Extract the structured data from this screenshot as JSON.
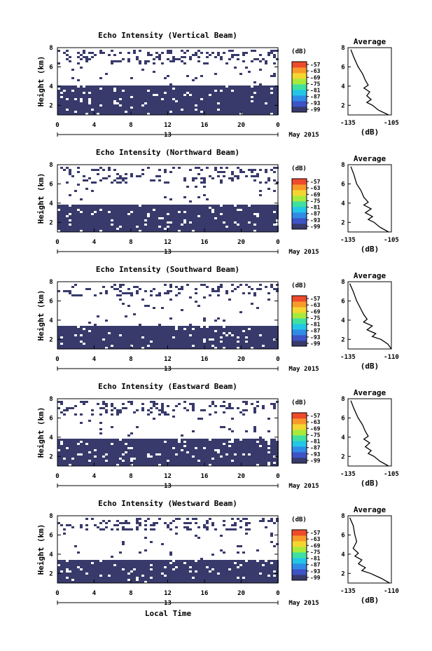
{
  "figure": {
    "date_label": "May 2015",
    "xlabel": "Local Time",
    "colors": {
      "echo": "#383a6b",
      "background": "#ffffff",
      "frame": "#000000"
    }
  },
  "chart_data": [
    {
      "type": "heatmap",
      "title": "Echo Intensity (Vertical Beam)",
      "ylabel": "Height (km)",
      "xlabel": "",
      "x_ticks": [
        "0",
        "4",
        "8",
        "12",
        "16",
        "20",
        "0"
      ],
      "y_ticks": [
        "2",
        "4",
        "6",
        "8"
      ],
      "day_label": "13",
      "ylim": [
        1,
        8
      ],
      "xlim": [
        0,
        24
      ],
      "dominant_value_dB": -99,
      "layers": [
        {
          "name": "lower",
          "bottom_km": 1.0,
          "top_km": 4.0
        },
        {
          "name": "upper-sparse",
          "bottom_km": 6.3,
          "top_km": 7.8
        }
      ],
      "colorbar": {
        "unit": "(dB)",
        "ticks": [
          "-57",
          "-63",
          "-69",
          "-75",
          "-81",
          "-87",
          "-93",
          "-99"
        ]
      },
      "profile": {
        "title": "Average",
        "xlabel": "(dB)",
        "x_ticks": [
          "-135",
          "-105"
        ],
        "y_ticks": [
          "2",
          "4",
          "6",
          "8"
        ],
        "x": [
          -133,
          -131,
          -128,
          -125,
          -123,
          -121,
          -124,
          -120,
          -122,
          -119,
          -122,
          -118,
          -114,
          -107
        ],
        "y": [
          7.8,
          7.0,
          6.0,
          5.3,
          4.6,
          4.1,
          3.8,
          3.4,
          3.0,
          2.6,
          2.3,
          2.0,
          1.5,
          1.0
        ]
      }
    },
    {
      "type": "heatmap",
      "title": "Echo Intensity (Northward Beam)",
      "ylabel": "Height (km)",
      "xlabel": "",
      "x_ticks": [
        "0",
        "4",
        "8",
        "12",
        "16",
        "20",
        "0"
      ],
      "y_ticks": [
        "2",
        "4",
        "6",
        "8"
      ],
      "day_label": "13",
      "ylim": [
        1,
        8
      ],
      "xlim": [
        0,
        24
      ],
      "dominant_value_dB": -99,
      "layers": [
        {
          "name": "lower",
          "bottom_km": 1.0,
          "top_km": 3.9
        },
        {
          "name": "upper-sparse",
          "bottom_km": 6.0,
          "top_km": 7.8
        }
      ],
      "colorbar": {
        "unit": "(dB)",
        "ticks": [
          "-57",
          "-63",
          "-69",
          "-75",
          "-81",
          "-87",
          "-93",
          "-99"
        ]
      },
      "profile": {
        "title": "Average",
        "xlabel": "(dB)",
        "x_ticks": [
          "-135",
          "-105"
        ],
        "y_ticks": [
          "2",
          "4",
          "6",
          "8"
        ],
        "x": [
          -133,
          -131,
          -129,
          -126,
          -124,
          -121,
          -124,
          -119,
          -123,
          -118,
          -121,
          -117,
          -113,
          -107
        ],
        "y": [
          7.8,
          7.0,
          6.0,
          5.3,
          4.6,
          4.1,
          3.8,
          3.4,
          3.0,
          2.6,
          2.3,
          2.0,
          1.5,
          1.0
        ]
      }
    },
    {
      "type": "heatmap",
      "title": "Echo Intensity (Southward Beam)",
      "ylabel": "Height (km)",
      "xlabel": "",
      "x_ticks": [
        "0",
        "4",
        "8",
        "12",
        "16",
        "20",
        "0"
      ],
      "y_ticks": [
        "2",
        "4",
        "6",
        "8"
      ],
      "day_label": "13",
      "ylim": [
        1,
        8
      ],
      "xlim": [
        0,
        24
      ],
      "dominant_value_dB": -99,
      "layers": [
        {
          "name": "lower",
          "bottom_km": 1.0,
          "top_km": 3.5
        },
        {
          "name": "upper-sparse",
          "bottom_km": 6.5,
          "top_km": 7.8
        }
      ],
      "colorbar": {
        "unit": "(dB)",
        "ticks": [
          "-57",
          "-63",
          "-69",
          "-75",
          "-81",
          "-87",
          "-93",
          "-99"
        ]
      },
      "profile": {
        "title": "Average",
        "xlabel": "(dB)",
        "x_ticks": [
          "-135",
          "-110"
        ],
        "y_ticks": [
          "2",
          "4",
          "6",
          "8"
        ],
        "x": [
          -134,
          -132,
          -130,
          -128,
          -126,
          -124,
          -126,
          -121,
          -124,
          -119,
          -121,
          -116,
          -112,
          -110
        ],
        "y": [
          7.8,
          7.0,
          6.0,
          5.3,
          4.6,
          4.1,
          3.8,
          3.4,
          3.0,
          2.6,
          2.3,
          2.0,
          1.5,
          1.0
        ]
      }
    },
    {
      "type": "heatmap",
      "title": "Echo Intensity (Eastward Beam)",
      "ylabel": "Height (km)",
      "xlabel": "",
      "x_ticks": [
        "0",
        "4",
        "8",
        "12",
        "16",
        "20",
        "0"
      ],
      "y_ticks": [
        "2",
        "4",
        "6",
        "8"
      ],
      "day_label": "13",
      "ylim": [
        1,
        8
      ],
      "xlim": [
        0,
        24
      ],
      "dominant_value_dB": -99,
      "layers": [
        {
          "name": "lower",
          "bottom_km": 1.0,
          "top_km": 3.9
        },
        {
          "name": "upper-sparse",
          "bottom_km": 6.2,
          "top_km": 7.8
        }
      ],
      "colorbar": {
        "unit": "(dB)",
        "ticks": [
          "-57",
          "-63",
          "-69",
          "-75",
          "-81",
          "-87",
          "-93",
          "-99"
        ]
      },
      "profile": {
        "title": "Average",
        "xlabel": "(dB)",
        "x_ticks": [
          "-135",
          "-105"
        ],
        "y_ticks": [
          "2",
          "4",
          "6",
          "8"
        ],
        "x": [
          -133,
          -131,
          -128,
          -125,
          -123,
          -121,
          -124,
          -120,
          -123,
          -119,
          -121,
          -117,
          -113,
          -107
        ],
        "y": [
          7.8,
          7.0,
          6.0,
          5.3,
          4.6,
          4.1,
          3.8,
          3.4,
          3.0,
          2.6,
          2.3,
          2.0,
          1.5,
          1.0
        ]
      }
    },
    {
      "type": "heatmap",
      "title": "Echo Intensity (Westward Beam)",
      "ylabel": "Height (km)",
      "xlabel": "Local Time",
      "x_ticks": [
        "0",
        "4",
        "8",
        "12",
        "16",
        "20",
        "0"
      ],
      "y_ticks": [
        "2",
        "4",
        "6",
        "8"
      ],
      "day_label": "13",
      "ylim": [
        1,
        8
      ],
      "xlim": [
        0,
        24
      ],
      "dominant_value_dB": -99,
      "layers": [
        {
          "name": "lower",
          "bottom_km": 1.0,
          "top_km": 3.3
        },
        {
          "name": "upper-sparse",
          "bottom_km": 6.5,
          "top_km": 7.8
        }
      ],
      "colorbar": {
        "unit": "(dB)",
        "ticks": [
          "-57",
          "-63",
          "-69",
          "-75",
          "-81",
          "-87",
          "-93",
          "-99"
        ]
      },
      "profile": {
        "title": "Average",
        "xlabel": "(dB)",
        "x_ticks": [
          "-135",
          "-110"
        ],
        "y_ticks": [
          "2",
          "4",
          "6",
          "8"
        ],
        "x": [
          -134,
          -132,
          -131,
          -130,
          -132,
          -129,
          -131,
          -127,
          -129,
          -125,
          -127,
          -122,
          -116,
          -111
        ],
        "y": [
          7.8,
          7.0,
          6.0,
          5.3,
          4.6,
          4.1,
          3.8,
          3.4,
          3.0,
          2.6,
          2.3,
          2.0,
          1.5,
          1.0
        ]
      }
    }
  ]
}
